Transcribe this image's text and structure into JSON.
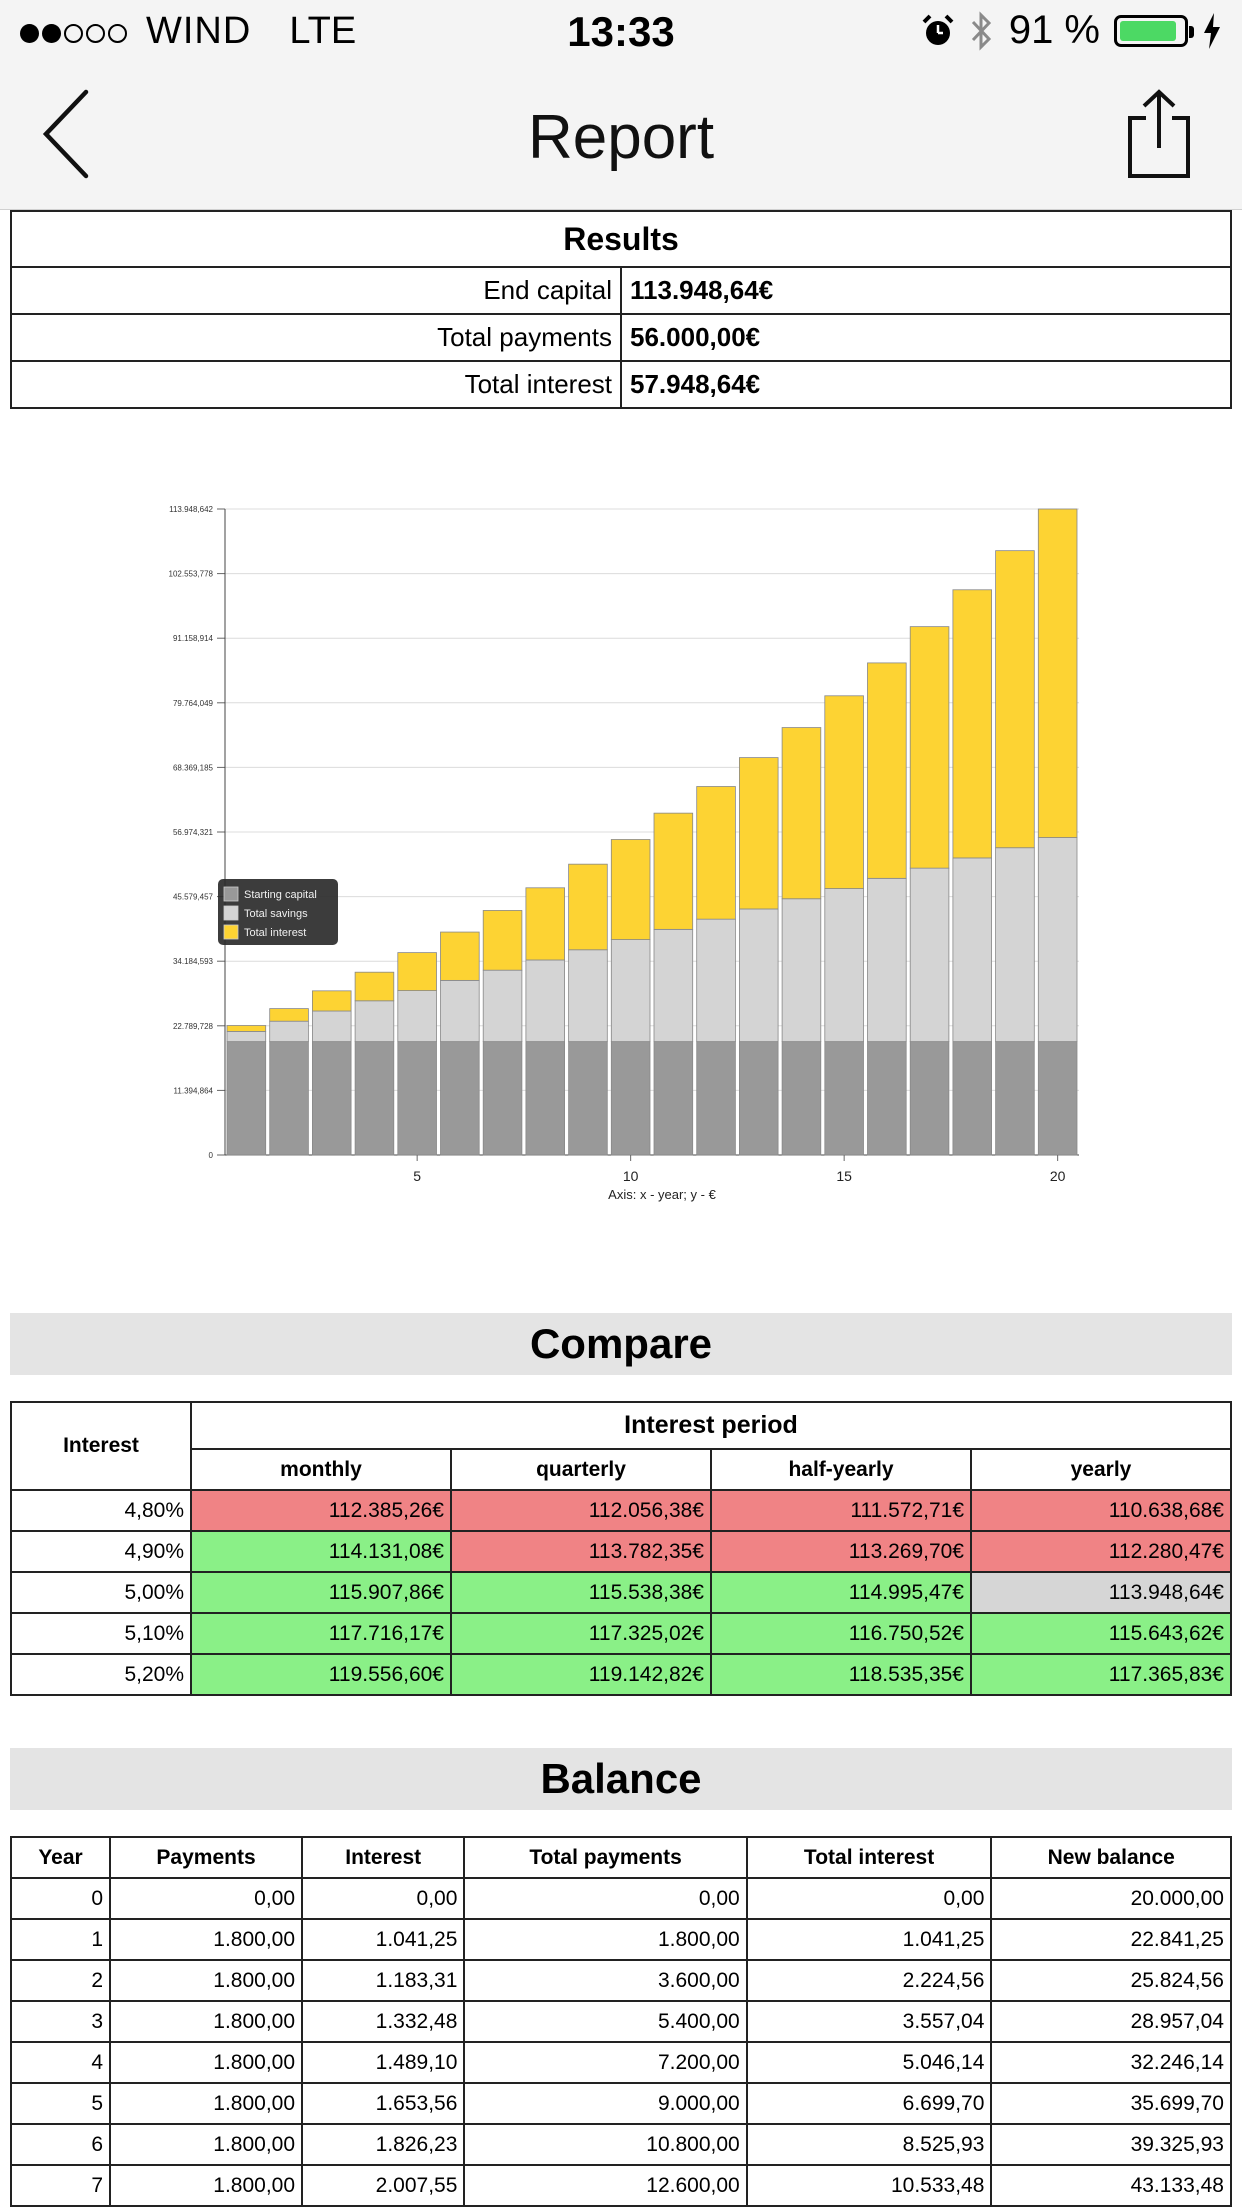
{
  "status_bar": {
    "carrier": "WIND",
    "network": "LTE",
    "time": "13:33",
    "battery": "91 %",
    "battery_level": 0.91,
    "signal_full": 2,
    "signal_total": 5
  },
  "nav": {
    "title": "Report"
  },
  "results": {
    "heading": "Results",
    "rows": [
      {
        "label": "End capital",
        "value": "113.948,64€"
      },
      {
        "label": "Total payments",
        "value": "56.000,00€"
      },
      {
        "label": "Total interest",
        "value": "57.948,64€"
      }
    ]
  },
  "chart_data": {
    "type": "bar",
    "stacked": true,
    "xlabel": "Axis: x - year; y - €",
    "x_ticks": [
      "5",
      "10",
      "15",
      "20"
    ],
    "y_ticks": [
      "0",
      "11.394,864",
      "22.789,728",
      "34.184,593",
      "45.579,457",
      "56.974,321",
      "68.369,185",
      "79.764,049",
      "91.158,914",
      "102.553,778",
      "113.948,642"
    ],
    "ylim": [
      0,
      113948.642
    ],
    "categories": [
      1,
      2,
      3,
      4,
      5,
      6,
      7,
      8,
      9,
      10,
      11,
      12,
      13,
      14,
      15,
      16,
      17,
      18,
      19,
      20
    ],
    "series": [
      {
        "name": "Starting capital",
        "color": "#999999",
        "values": [
          20000,
          20000,
          20000,
          20000,
          20000,
          20000,
          20000,
          20000,
          20000,
          20000,
          20000,
          20000,
          20000,
          20000,
          20000,
          20000,
          20000,
          20000,
          20000,
          20000
        ]
      },
      {
        "name": "Total savings",
        "color": "#d4d4d4",
        "values": [
          1800,
          3600,
          5400,
          7200,
          9000,
          10800,
          12600,
          14400,
          16200,
          18000,
          19800,
          21600,
          23400,
          25200,
          27000,
          28800,
          30600,
          32400,
          34200,
          36000
        ]
      },
      {
        "name": "Total interest",
        "color": "#fdd333",
        "values": [
          1041.25,
          2224.56,
          3557.04,
          5046.14,
          6699.7,
          8525.93,
          10533.48,
          12733,
          15100,
          17650,
          20500,
          23400,
          26700,
          30200,
          34000,
          38000,
          42600,
          47300,
          52400,
          57948.64
        ]
      }
    ],
    "legend_position": "middle-left"
  },
  "compare": {
    "title": "Compare",
    "interest_header": "Interest",
    "period_header": "Interest period",
    "columns": [
      "monthly",
      "quarterly",
      "half-yearly",
      "yearly"
    ],
    "rows": [
      {
        "rate": "4,80%",
        "cells": [
          {
            "v": "112.385,26€",
            "c": "red"
          },
          {
            "v": "112.056,38€",
            "c": "red"
          },
          {
            "v": "111.572,71€",
            "c": "red"
          },
          {
            "v": "110.638,68€",
            "c": "red"
          }
        ]
      },
      {
        "rate": "4,90%",
        "cells": [
          {
            "v": "114.131,08€",
            "c": "green"
          },
          {
            "v": "113.782,35€",
            "c": "red"
          },
          {
            "v": "113.269,70€",
            "c": "red"
          },
          {
            "v": "112.280,47€",
            "c": "red"
          }
        ]
      },
      {
        "rate": "5,00%",
        "cells": [
          {
            "v": "115.907,86€",
            "c": "green"
          },
          {
            "v": "115.538,38€",
            "c": "green"
          },
          {
            "v": "114.995,47€",
            "c": "green"
          },
          {
            "v": "113.948,64€",
            "c": "gray"
          }
        ]
      },
      {
        "rate": "5,10%",
        "cells": [
          {
            "v": "117.716,17€",
            "c": "green"
          },
          {
            "v": "117.325,02€",
            "c": "green"
          },
          {
            "v": "116.750,52€",
            "c": "green"
          },
          {
            "v": "115.643,62€",
            "c": "green"
          }
        ]
      },
      {
        "rate": "5,20%",
        "cells": [
          {
            "v": "119.556,60€",
            "c": "green"
          },
          {
            "v": "119.142,82€",
            "c": "green"
          },
          {
            "v": "118.535,35€",
            "c": "green"
          },
          {
            "v": "117.365,83€",
            "c": "green"
          }
        ]
      }
    ]
  },
  "balance": {
    "title": "Balance",
    "columns": [
      "Year",
      "Payments",
      "Interest",
      "Total payments",
      "Total interest",
      "New balance"
    ],
    "rows": [
      [
        "0",
        "0,00",
        "0,00",
        "0,00",
        "0,00",
        "20.000,00"
      ],
      [
        "1",
        "1.800,00",
        "1.041,25",
        "1.800,00",
        "1.041,25",
        "22.841,25"
      ],
      [
        "2",
        "1.800,00",
        "1.183,31",
        "3.600,00",
        "2.224,56",
        "25.824,56"
      ],
      [
        "3",
        "1.800,00",
        "1.332,48",
        "5.400,00",
        "3.557,04",
        "28.957,04"
      ],
      [
        "4",
        "1.800,00",
        "1.489,10",
        "7.200,00",
        "5.046,14",
        "32.246,14"
      ],
      [
        "5",
        "1.800,00",
        "1.653,56",
        "9.000,00",
        "6.699,70",
        "35.699,70"
      ],
      [
        "6",
        "1.800,00",
        "1.826,23",
        "10.800,00",
        "8.525,93",
        "39.325,93"
      ],
      [
        "7",
        "1.800,00",
        "2.007,55",
        "12.600,00",
        "10.533,48",
        "43.133,48"
      ]
    ]
  }
}
